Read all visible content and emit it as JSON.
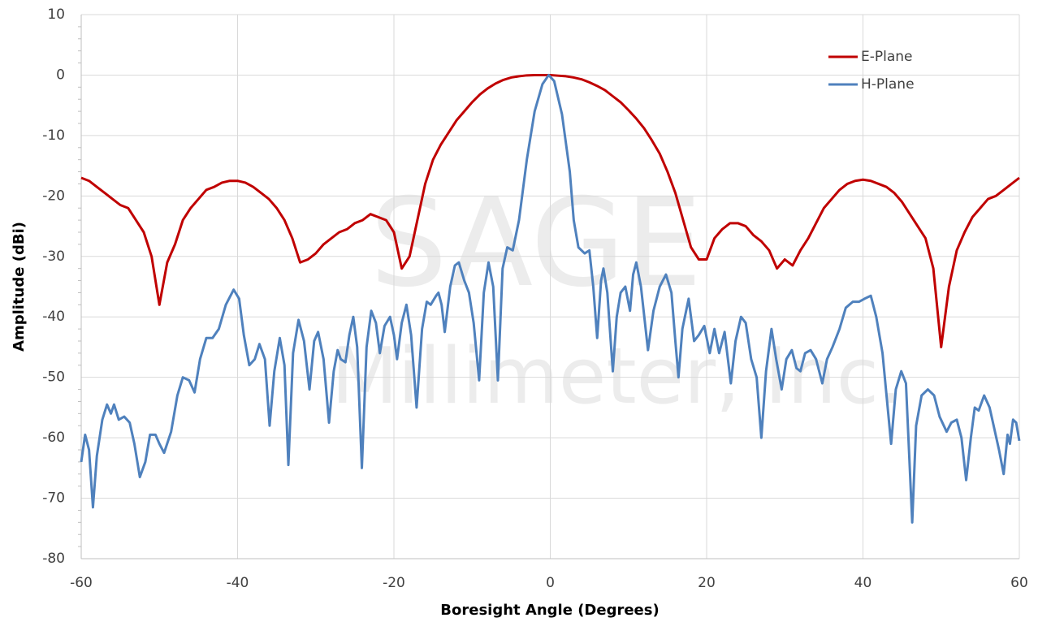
{
  "chart_data": {
    "type": "line",
    "watermark": [
      "SAGE",
      "Millimeter, Inc."
    ],
    "xlabel": "Boresight Angle (Degrees)",
    "ylabel": "Amplitude (dBi)",
    "xlim": [
      -60,
      60
    ],
    "ylim": [
      -80,
      10
    ],
    "xticks": [
      -60,
      -40,
      -20,
      0,
      20,
      40,
      60
    ],
    "yticks": [
      -80,
      -70,
      -60,
      -50,
      -40,
      -30,
      -20,
      -10,
      0,
      10
    ],
    "grid": true,
    "legend": "upper right",
    "series": [
      {
        "name": "E-Plane",
        "color": "#c00000",
        "x": [
          -60,
          -59,
          -58,
          -57,
          -56,
          -55,
          -54,
          -53,
          -52,
          -51,
          -50,
          -49,
          -48,
          -47,
          -46,
          -45,
          -44,
          -43,
          -42,
          -41,
          -40,
          -39,
          -38,
          -37,
          -36,
          -35,
          -34,
          -33,
          -32,
          -31,
          -30,
          -29,
          -28,
          -27,
          -26,
          -25,
          -24,
          -23,
          -22,
          -21,
          -20,
          -19,
          -18,
          -17,
          -16,
          -15,
          -14,
          -13,
          -12,
          -11,
          -10,
          -9,
          -8,
          -7,
          -6,
          -5,
          -4,
          -3,
          -2,
          -1,
          0,
          1,
          2,
          3,
          4,
          5,
          6,
          7,
          8,
          9,
          10,
          11,
          12,
          13,
          14,
          15,
          16,
          17,
          18,
          19,
          20,
          21,
          22,
          23,
          24,
          25,
          26,
          27,
          28,
          29,
          30,
          31,
          32,
          33,
          34,
          35,
          36,
          37,
          38,
          39,
          40,
          41,
          42,
          43,
          44,
          45,
          46,
          47,
          48,
          49,
          50,
          51,
          52,
          53,
          54,
          55,
          56,
          57,
          58,
          59,
          60
        ],
        "values": [
          -17,
          -17.5,
          -18.5,
          -19.5,
          -20.5,
          -21.5,
          -22,
          -24,
          -26,
          -30,
          -38,
          -31,
          -28,
          -24,
          -22,
          -20.5,
          -19,
          -18.5,
          -17.8,
          -17.5,
          -17.5,
          -17.8,
          -18.5,
          -19.5,
          -20.5,
          -22,
          -24,
          -27,
          -31,
          -30.5,
          -29.5,
          -28,
          -27,
          -26,
          -25.5,
          -24.5,
          -24,
          -23,
          -23.5,
          -24,
          -26,
          -32,
          -30,
          -24,
          -18,
          -14,
          -11.5,
          -9.5,
          -7.5,
          -6,
          -4.5,
          -3.2,
          -2.2,
          -1.4,
          -0.8,
          -0.4,
          -0.2,
          -0.05,
          0,
          0,
          0,
          -0.1,
          -0.2,
          -0.4,
          -0.7,
          -1.2,
          -1.8,
          -2.5,
          -3.5,
          -4.5,
          -5.8,
          -7.2,
          -8.8,
          -10.8,
          -13,
          -16,
          -19.5,
          -24,
          -28.5,
          -30.5,
          -30.5,
          -27,
          -25.5,
          -24.5,
          -24.5,
          -25,
          -26.5,
          -27.5,
          -29,
          -32,
          -30.5,
          -31.5,
          -29,
          -27,
          -24.5,
          -22,
          -20.5,
          -19,
          -18,
          -17.5,
          -17.3,
          -17.5,
          -18,
          -18.5,
          -19.5,
          -21,
          -23,
          -25,
          -27,
          -32,
          -45,
          -35,
          -29,
          -26,
          -23.5,
          -22,
          -20.5,
          -20,
          -19,
          -18,
          -17
        ]
      },
      {
        "name": "H-Plane",
        "color": "#4f81bd",
        "x": [
          -60,
          -59.5,
          -59,
          -58.5,
          -58,
          -57.3,
          -56.7,
          -56.2,
          -55.8,
          -55.2,
          -54.5,
          -53.8,
          -53.2,
          -52.5,
          -51.8,
          -51.2,
          -50.5,
          -50,
          -49.4,
          -48.5,
          -47.7,
          -47,
          -46.2,
          -45.5,
          -44.8,
          -44,
          -43.2,
          -42.4,
          -41.5,
          -40.5,
          -39.8,
          -39.2,
          -38.5,
          -37.8,
          -37.2,
          -36.5,
          -35.9,
          -35.3,
          -34.6,
          -34,
          -33.5,
          -32.9,
          -32.2,
          -31.5,
          -30.8,
          -30.2,
          -29.7,
          -29,
          -28.3,
          -27.7,
          -27.2,
          -26.8,
          -26.2,
          -25.7,
          -25.2,
          -24.7,
          -24.1,
          -23.5,
          -22.9,
          -22.3,
          -21.8,
          -21.2,
          -20.5,
          -20,
          -19.6,
          -19,
          -18.4,
          -17.8,
          -17.1,
          -16.4,
          -15.8,
          -15.3,
          -14.6,
          -14.3,
          -13.9,
          -13.5,
          -12.8,
          -12.2,
          -11.7,
          -11,
          -10.4,
          -9.8,
          -9.1,
          -8.5,
          -7.9,
          -7.3,
          -6.7,
          -6.1,
          -5.5,
          -4.8,
          -4,
          -3,
          -2,
          -1,
          -0.2,
          0.5,
          1.5,
          2.5,
          3,
          3.6,
          4.4,
          5,
          5.5,
          6,
          6.5,
          6.8,
          7.3,
          8,
          8.5,
          9,
          9.6,
          10.2,
          10.6,
          11,
          11.6,
          12.5,
          13.2,
          14,
          14.8,
          15.5,
          16,
          16.4,
          16.9,
          17.7,
          18.4,
          19,
          19.7,
          20.4,
          21,
          21.6,
          22.3,
          23.1,
          23.7,
          24.4,
          25,
          25.7,
          26.4,
          27,
          27.6,
          28.3,
          28.9,
          29.6,
          30.2,
          30.9,
          31.5,
          32,
          32.6,
          33.3,
          34,
          34.8,
          35.4,
          36.1,
          37,
          37.8,
          38.7,
          39.5,
          40.2,
          41,
          41.7,
          42.5,
          43.6,
          44.2,
          44.9,
          45.5,
          46.3,
          46.8,
          47.5,
          48.3,
          49.1,
          49.8,
          50.7,
          51.3,
          52,
          52.6,
          53.2,
          53.8,
          54.3,
          54.8,
          55.5,
          56.2,
          56.8,
          57.4,
          58,
          58.5,
          58.8,
          59.2,
          59.6,
          60
        ],
        "values": [
          -64,
          -59.5,
          -62,
          -71.5,
          -63,
          -57,
          -54.5,
          -56,
          -54.5,
          -57,
          -56.5,
          -57.5,
          -61,
          -66.5,
          -64,
          -59.5,
          -59.5,
          -61,
          -62.5,
          -59,
          -53,
          -50,
          -50.5,
          -52.5,
          -47,
          -43.5,
          -43.5,
          -42,
          -38,
          -35.5,
          -37,
          -43,
          -48,
          -47,
          -44.5,
          -47,
          -58,
          -49,
          -43.5,
          -48,
          -64.5,
          -46,
          -40.5,
          -44,
          -52,
          -44,
          -42.5,
          -47,
          -57.5,
          -49,
          -45.5,
          -47,
          -47.5,
          -43,
          -40,
          -45,
          -65,
          -45,
          -39,
          -41,
          -46,
          -41.5,
          -40,
          -43,
          -47,
          -41,
          -38,
          -43,
          -55,
          -42,
          -37.5,
          -38,
          -36.5,
          -36,
          -38,
          -42.5,
          -35,
          -31.5,
          -31,
          -34,
          -36,
          -41,
          -50.5,
          -36,
          -31,
          -35,
          -50.5,
          -32,
          -28.5,
          -29,
          -24,
          -14,
          -6,
          -1.5,
          0,
          -1,
          -6.5,
          -16,
          -24,
          -28.5,
          -29.5,
          -29,
          -35,
          -43.5,
          -34,
          -32,
          -36,
          -49,
          -40,
          -36,
          -35,
          -39,
          -33,
          -31,
          -35,
          -45.5,
          -39,
          -35,
          -33,
          -36,
          -44,
          -50,
          -42,
          -37,
          -44,
          -43,
          -41.5,
          -46,
          -42,
          -46,
          -42.5,
          -51,
          -44,
          -40,
          -41,
          -47,
          -50,
          -60,
          -49,
          -42,
          -47,
          -52,
          -47,
          -45.5,
          -48.5,
          -49,
          -46,
          -45.5,
          -47,
          -51,
          -47,
          -45,
          -42,
          -38.5,
          -37.5,
          -37.5,
          -37,
          -36.5,
          -40,
          -46,
          -61,
          -52,
          -49,
          -51,
          -74,
          -58,
          -53,
          -52,
          -53,
          -56.5,
          -59,
          -57.5,
          -57,
          -60,
          -67,
          -60,
          -55,
          -55.5,
          -53,
          -55,
          -58.5,
          -62,
          -66,
          -59.5,
          -61,
          -57,
          -57.5,
          -60.5
        ]
      }
    ]
  }
}
